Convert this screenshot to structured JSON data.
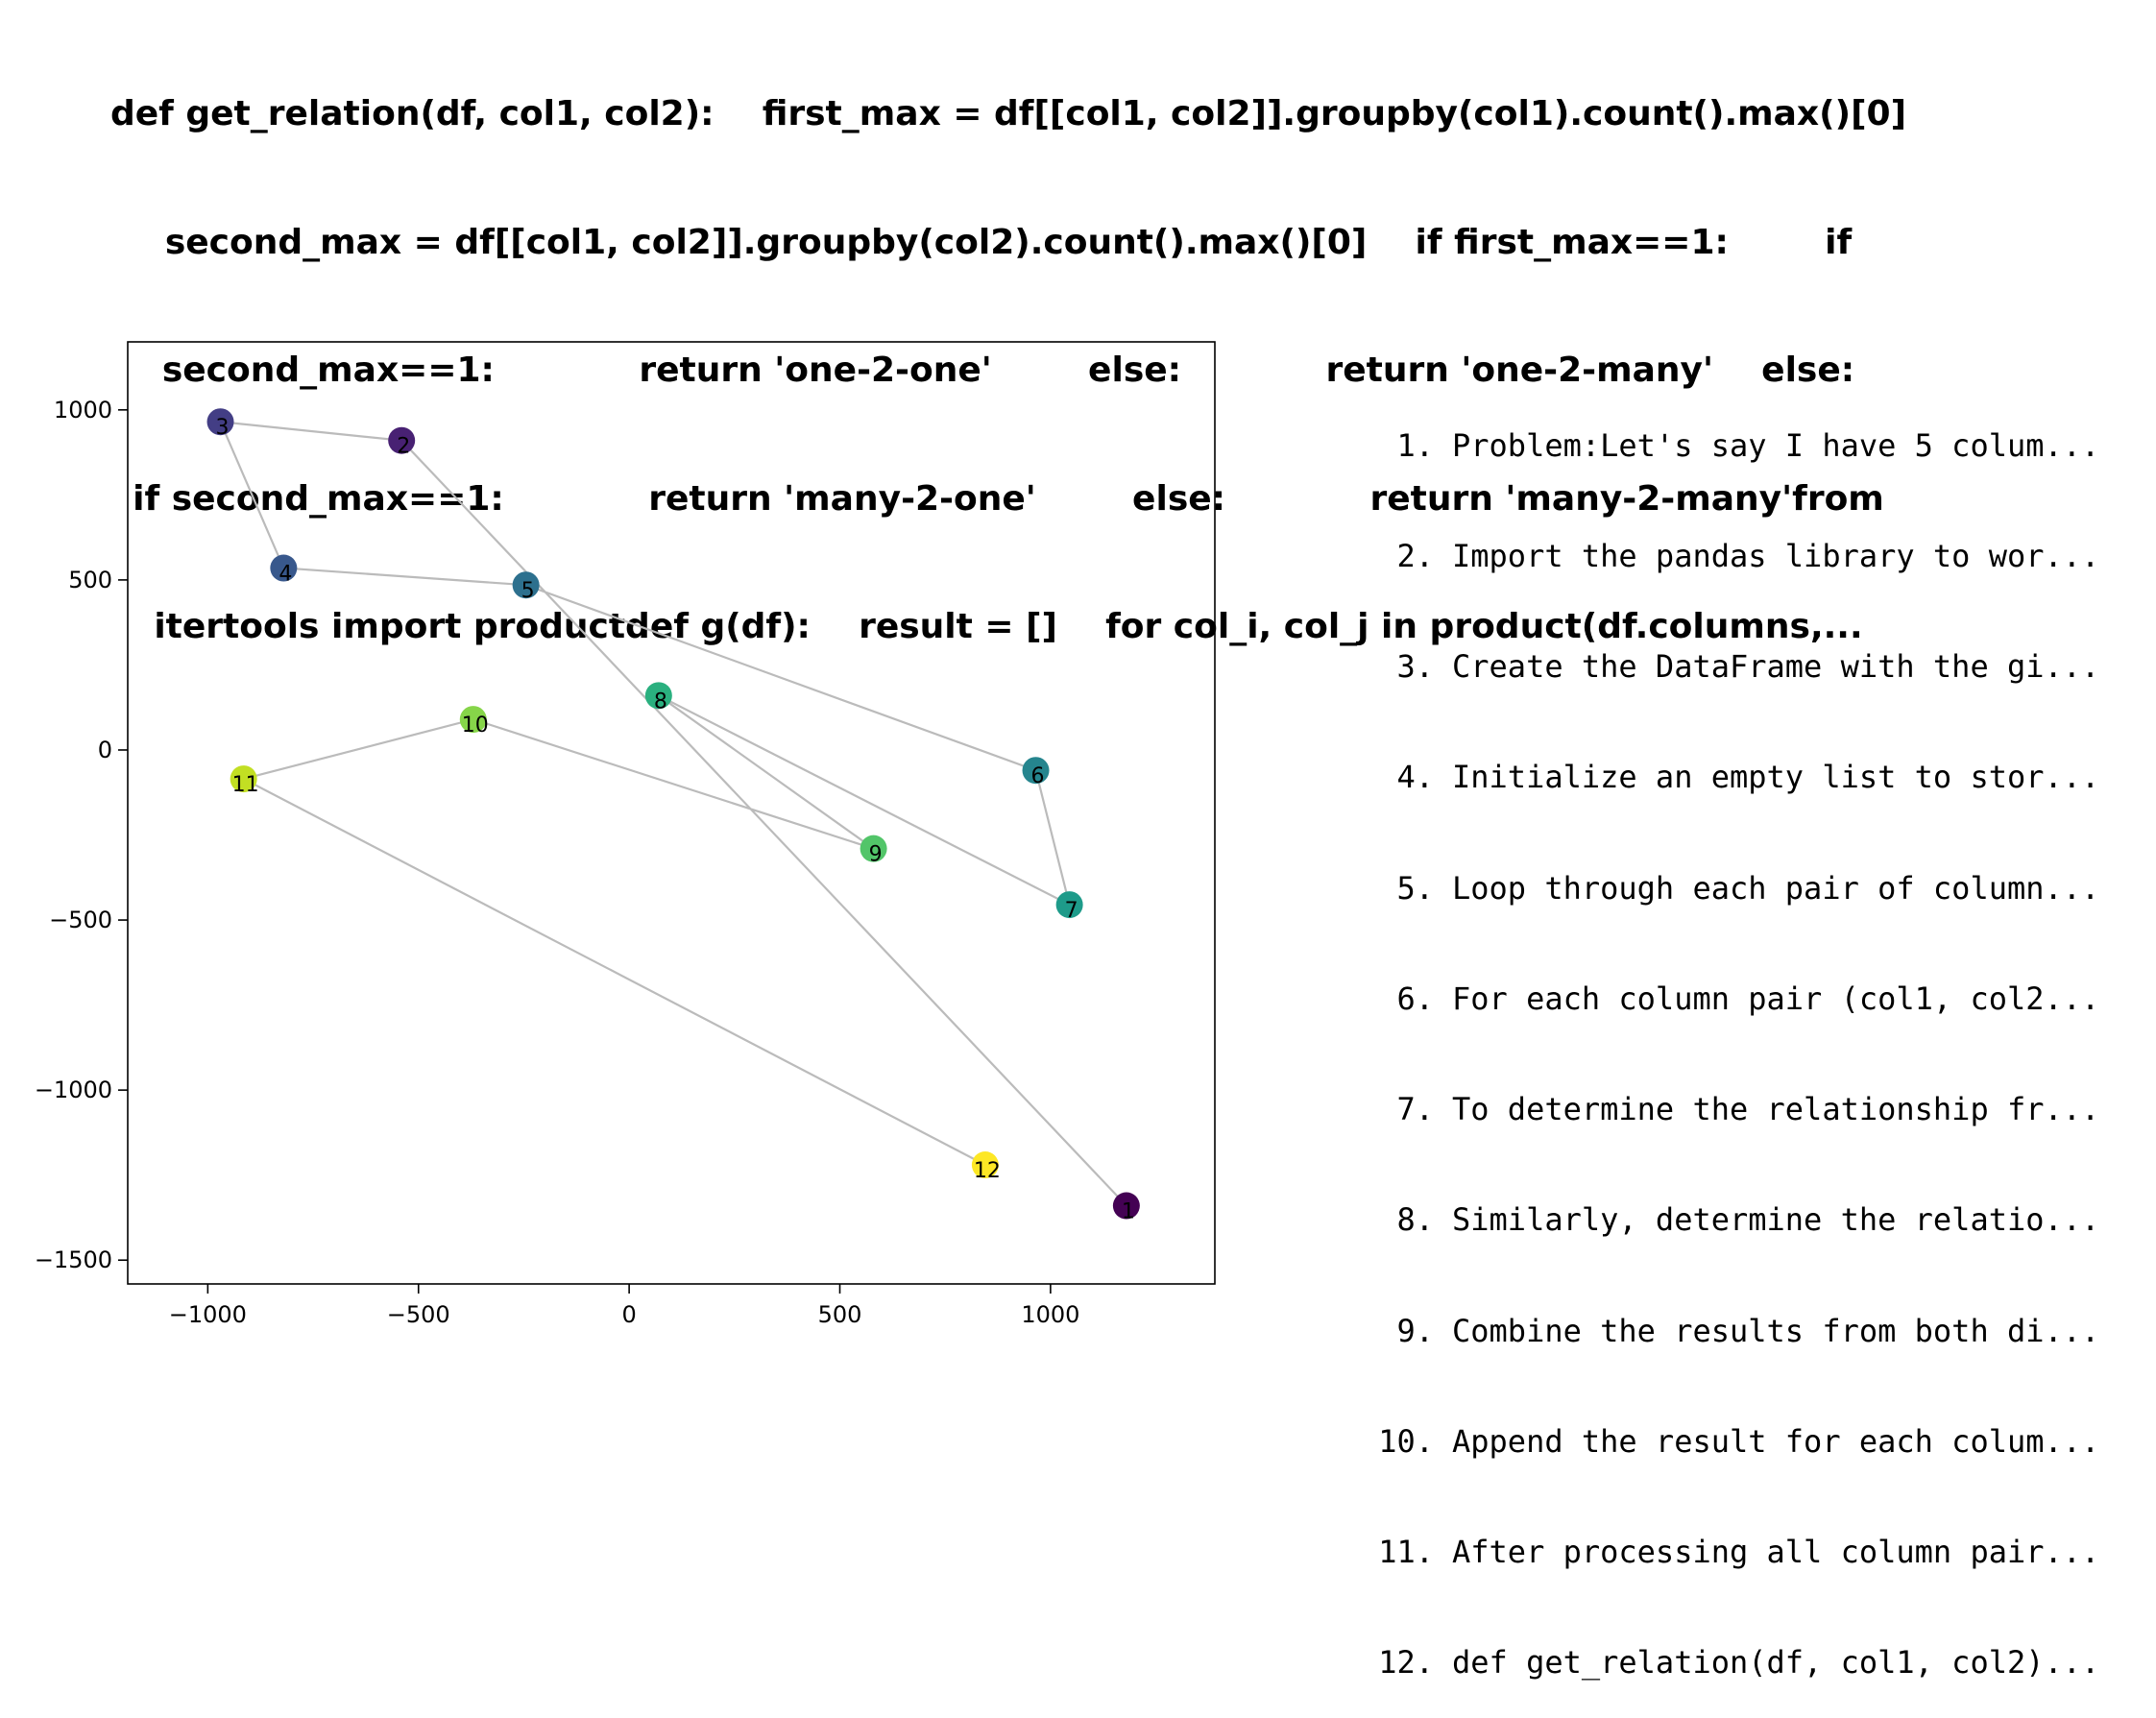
{
  "title_lines": [
    "def get_relation(df, col1, col2):    first_max = df[[col1, col2]].groupby(col1).count().max()[0]",
    "second_max = df[[col1, col2]].groupby(col2).count().max()[0]    if first_max==1:        if",
    "second_max==1:            return 'one-2-one'        else:            return 'one-2-many'    else:",
    "if second_max==1:            return 'many-2-one'        else:            return 'many-2-many'from",
    "itertools import productdef g(df):    result = []    for col_i, col_j in product(df.columns,..."
  ],
  "steps": [
    {
      "num": "1.",
      "text": "Problem:Let's say I have 5 colum..."
    },
    {
      "num": "2.",
      "text": "Import the pandas library to wor..."
    },
    {
      "num": "3.",
      "text": "Create the DataFrame with the gi..."
    },
    {
      "num": "4.",
      "text": "Initialize an empty list to stor..."
    },
    {
      "num": "5.",
      "text": "Loop through each pair of column..."
    },
    {
      "num": "6.",
      "text": "For each column pair (col1, col2..."
    },
    {
      "num": "7.",
      "text": "To determine the relationship fr..."
    },
    {
      "num": "8.",
      "text": "Similarly, determine the relatio..."
    },
    {
      "num": "9.",
      "text": "Combine the results from both di..."
    },
    {
      "num": "10.",
      "text": "Append the result for each colum..."
    },
    {
      "num": "11.",
      "text": "After processing all column pair..."
    },
    {
      "num": "12.",
      "text": "def get_relation(df, col1, col2)..."
    }
  ],
  "chart_data": {
    "type": "scatter",
    "connected": true,
    "line_color": "#bbbbbb",
    "colormap": "viridis",
    "xlim": [
      -1190,
      1390
    ],
    "ylim": [
      -1570,
      1200
    ],
    "xticks": [
      -1000,
      -500,
      0,
      500,
      1000
    ],
    "yticks": [
      1000,
      500,
      0,
      -500,
      -1000,
      -1500
    ],
    "points": [
      {
        "label": "1",
        "x": 1180,
        "y": -1340,
        "color": "#440154"
      },
      {
        "label": "2",
        "x": -540,
        "y": 910,
        "color": "#482173"
      },
      {
        "label": "3",
        "x": -970,
        "y": 965,
        "color": "#433e85"
      },
      {
        "label": "4",
        "x": -820,
        "y": 535,
        "color": "#38588c"
      },
      {
        "label": "5",
        "x": -245,
        "y": 485,
        "color": "#2d708e"
      },
      {
        "label": "6",
        "x": 965,
        "y": -60,
        "color": "#25858e"
      },
      {
        "label": "7",
        "x": 1045,
        "y": -455,
        "color": "#1e9b8a"
      },
      {
        "label": "8",
        "x": 70,
        "y": 160,
        "color": "#2ab07f"
      },
      {
        "label": "9",
        "x": 580,
        "y": -290,
        "color": "#52c569"
      },
      {
        "label": "10",
        "x": -370,
        "y": 90,
        "color": "#86d549"
      },
      {
        "label": "11",
        "x": -915,
        "y": -85,
        "color": "#c2df23"
      },
      {
        "label": "12",
        "x": 845,
        "y": -1220,
        "color": "#fde725"
      }
    ]
  }
}
